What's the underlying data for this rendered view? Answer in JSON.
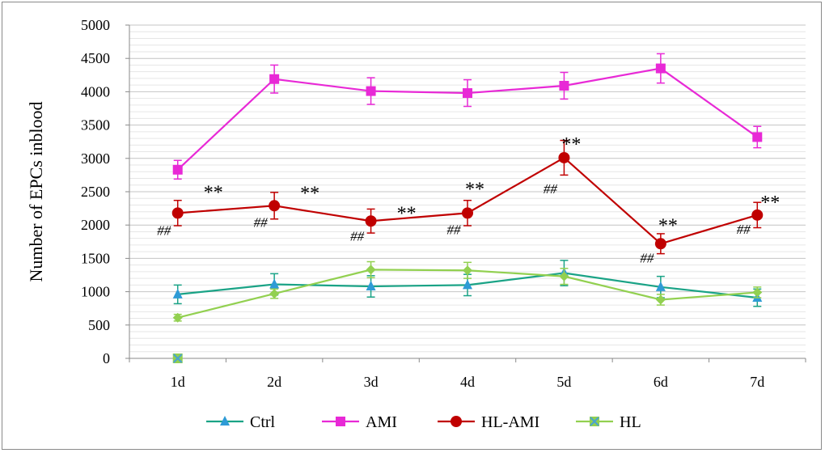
{
  "chart_data": {
    "type": "line",
    "title": "",
    "xlabel": "",
    "ylabel": "Number of EPCs inblood",
    "categories": [
      "1d",
      "2d",
      "3d",
      "4d",
      "5d",
      "6d",
      "7d"
    ],
    "ylim": [
      0,
      5000
    ],
    "yticks": [
      0,
      500,
      1000,
      1500,
      2000,
      2500,
      3000,
      3500,
      4000,
      4500,
      5000
    ],
    "grid": true,
    "legend": "bottom",
    "series": [
      {
        "name": "Ctrl",
        "color": "#1aa386",
        "marker": "triangle",
        "marker_color": "#2e9bd6",
        "values": [
          960,
          1110,
          1080,
          1100,
          1280,
          1070,
          910
        ],
        "errors": [
          140,
          160,
          160,
          160,
          190,
          160,
          130
        ]
      },
      {
        "name": "AMI",
        "color": "#e829d6",
        "marker": "square",
        "marker_color": "#e829d6",
        "values": [
          2830,
          4190,
          4010,
          3980,
          4090,
          4350,
          3320
        ],
        "errors": [
          140,
          210,
          200,
          200,
          200,
          220,
          160
        ]
      },
      {
        "name": "HL-AMI",
        "color": "#c00000",
        "marker": "circle",
        "marker_color": "#c00000",
        "values": [
          2180,
          2290,
          2060,
          2180,
          3010,
          1720,
          2150
        ],
        "errors": [
          190,
          200,
          180,
          190,
          260,
          150,
          190
        ]
      },
      {
        "name": "HL",
        "color": "#92d050",
        "marker": "diamond",
        "marker_color": "#92d050",
        "values": [
          610,
          970,
          1330,
          1320,
          1230,
          880,
          990
        ],
        "errors": [
          50,
          70,
          120,
          120,
          120,
          80,
          80
        ]
      }
    ],
    "annotations": {
      "double_star": [
        "**",
        "**",
        "**",
        "**",
        "**",
        "**",
        "**"
      ],
      "hash": [
        "##",
        "##",
        "##",
        "##",
        "##",
        "##",
        "##"
      ]
    }
  }
}
